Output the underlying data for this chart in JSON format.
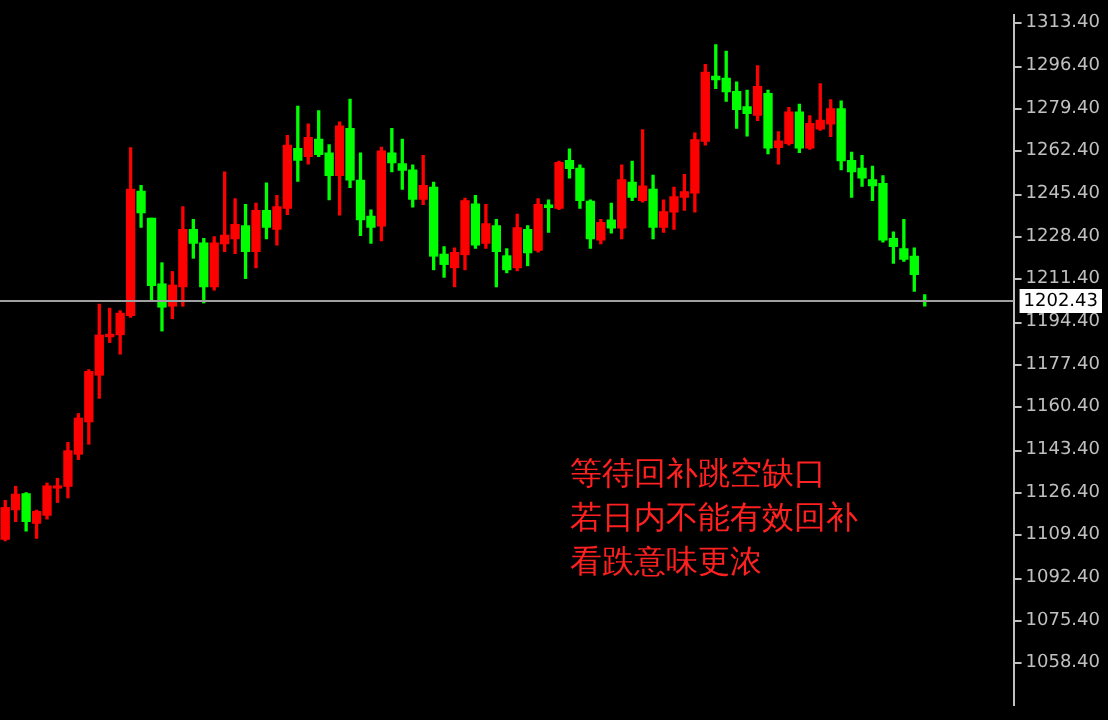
{
  "chart_data": {
    "type": "candlestick",
    "categories": [
      null,
      null,
      null,
      null,
      null,
      null,
      null,
      null,
      null,
      null,
      null,
      null,
      null,
      null,
      null,
      null,
      null,
      null,
      null,
      null,
      null,
      null,
      null,
      null,
      null,
      null,
      null,
      null,
      null,
      null,
      null,
      null,
      null,
      null,
      null,
      null,
      null,
      null,
      null,
      null,
      null,
      null,
      null,
      null,
      null,
      null,
      null,
      null,
      null,
      null,
      null,
      null,
      null,
      null,
      null,
      null,
      null,
      null,
      null,
      null,
      null,
      null,
      null,
      null,
      null,
      null,
      null,
      null,
      null,
      null,
      null,
      null,
      null,
      null,
      null,
      null,
      null,
      null,
      null,
      null,
      null,
      null,
      null,
      null,
      null,
      null,
      null,
      null,
      null,
      null,
      null,
      null,
      null,
      null,
      null,
      null,
      null
    ],
    "ohlc": [
      [
        1107.6,
        1122.9,
        1107,
        1120.1
      ],
      [
        1119.3,
        1128.5,
        1114.7,
        1125.4
      ],
      [
        1125.6,
        1126,
        1110.9,
        1114.7
      ],
      [
        1114,
        1119,
        1108,
        1118.5
      ],
      [
        1117.2,
        1129.8,
        1115.7,
        1128.7
      ],
      [
        1128,
        1131.7,
        1122.3,
        1128.7
      ],
      [
        1128.7,
        1146,
        1124.1,
        1142.7
      ],
      [
        1141.5,
        1157.5,
        1139.4,
        1155.7
      ],
      [
        1154.4,
        1175,
        1145.5,
        1174.3
      ],
      [
        1173,
        1201.1,
        1163.8,
        1188.8
      ],
      [
        1188.3,
        1199.5,
        1186,
        1189.1
      ],
      [
        1189.1,
        1198.5,
        1181.4,
        1197.5
      ],
      [
        1196.7,
        1263.5,
        1196,
        1246.9
      ],
      [
        1246.1,
        1248.4,
        1231.9,
        1237.7
      ],
      [
        1235.4,
        1235.4,
        1202.4,
        1208.7
      ],
      [
        1209.2,
        1217.6,
        1190.6,
        1200.1
      ],
      [
        1200.5,
        1214.1,
        1195.5,
        1208.7
      ],
      [
        1208.2,
        1240,
        1200.5,
        1230.9
      ],
      [
        1230.9,
        1234.9,
        1219.6,
        1225.5
      ],
      [
        1225.5,
        1227.3,
        1201.8,
        1208.2
      ],
      [
        1208.2,
        1228,
        1206.9,
        1225.5
      ],
      [
        1225.3,
        1253.8,
        1222.2,
        1228.6
      ],
      [
        1227.3,
        1243.1,
        1221.5,
        1232.9
      ],
      [
        1232.4,
        1240.8,
        1211.5,
        1222.2
      ],
      [
        1222.2,
        1241.3,
        1215.8,
        1238.5
      ],
      [
        1238.5,
        1249.4,
        1227.3,
        1231.9
      ],
      [
        1231.1,
        1244.4,
        1224.8,
        1240
      ],
      [
        1239.5,
        1268.3,
        1237,
        1264.5
      ],
      [
        1263.2,
        1280,
        1250.2,
        1258.6
      ],
      [
        1260.1,
        1272.9,
        1257.1,
        1267.5
      ],
      [
        1266.8,
        1278.2,
        1260.1,
        1260.9
      ],
      [
        1261.4,
        1264.7,
        1242.9,
        1252.5
      ],
      [
        1252.5,
        1273.7,
        1236.8,
        1272.1
      ],
      [
        1271.1,
        1282.8,
        1247.7,
        1250.7
      ],
      [
        1250.5,
        1261.4,
        1228.6,
        1234.9
      ],
      [
        1236.2,
        1238.7,
        1225.5,
        1231.9
      ],
      [
        1232.4,
        1263.7,
        1226.5,
        1262.2
      ],
      [
        1261.4,
        1271.1,
        1254,
        1257.6
      ],
      [
        1257.1,
        1266.8,
        1247.1,
        1254.6
      ],
      [
        1254.6,
        1256.6,
        1240,
        1243.1
      ],
      [
        1243.1,
        1260.4,
        1241,
        1248.4
      ],
      [
        1247.7,
        1249.7,
        1215,
        1220.4
      ],
      [
        1221,
        1224,
        1212,
        1217.1
      ],
      [
        1215.8,
        1223.5,
        1208.2,
        1221.7
      ],
      [
        1221,
        1243.3,
        1215,
        1242.3
      ],
      [
        1241,
        1244.4,
        1223.5,
        1224.8
      ],
      [
        1225.5,
        1240.8,
        1223.5,
        1233.2
      ],
      [
        1232.4,
        1234.9,
        1208.2,
        1222.2
      ],
      [
        1220.4,
        1223.2,
        1213.8,
        1215
      ],
      [
        1215.8,
        1237,
        1214.6,
        1231.6
      ],
      [
        1230.9,
        1232.4,
        1216.6,
        1221.7
      ],
      [
        1222.7,
        1243.1,
        1222,
        1240.8
      ],
      [
        1240.6,
        1242.6,
        1229.9,
        1239.8
      ],
      [
        1239.5,
        1258.1,
        1239,
        1257.6
      ],
      [
        1258.4,
        1263,
        1251.5,
        1255.3
      ],
      [
        1255.3,
        1256.6,
        1239.5,
        1242.6
      ],
      [
        1242.1,
        1242.6,
        1223.5,
        1227.3
      ],
      [
        1226.8,
        1234.9,
        1225.3,
        1233.7
      ],
      [
        1234.7,
        1241.3,
        1229.6,
        1231.6
      ],
      [
        1231.6,
        1256.6,
        1227.3,
        1250.7
      ],
      [
        1249.7,
        1258.1,
        1242.6,
        1243.9
      ],
      [
        1242.6,
        1270.6,
        1242,
        1248.2
      ],
      [
        1246.9,
        1252.5,
        1227.3,
        1231.9
      ],
      [
        1231.9,
        1242.6,
        1229.9,
        1238
      ],
      [
        1238,
        1247.7,
        1231.1,
        1243.9
      ],
      [
        1243.9,
        1252.8,
        1238.7,
        1245.9
      ],
      [
        1245.6,
        1269.3,
        1238,
        1266.6
      ],
      [
        1266.2,
        1296.6,
        1264.7,
        1293.5
      ],
      [
        1292,
        1304.5,
        1287.2,
        1290.7
      ],
      [
        1291.2,
        1301.9,
        1282.1,
        1285.9
      ],
      [
        1285.9,
        1289.7,
        1271.4,
        1278.8
      ],
      [
        1279.8,
        1286.4,
        1268.3,
        1277.2
      ],
      [
        1276.5,
        1296.1,
        1274.4,
        1287.9
      ],
      [
        1285.1,
        1286.4,
        1261.2,
        1263.5
      ],
      [
        1263.7,
        1269.8,
        1257.1,
        1266.2
      ],
      [
        1265.3,
        1279.5,
        1264.7,
        1277.7
      ],
      [
        1277.7,
        1280.8,
        1261.7,
        1263.5
      ],
      [
        1263.5,
        1276.2,
        1263,
        1273.1
      ],
      [
        1271.1,
        1289,
        1270.6,
        1274.4
      ],
      [
        1273.1,
        1282.6,
        1268.1,
        1279
      ],
      [
        1279,
        1282.1,
        1254.8,
        1258.4
      ],
      [
        1258.4,
        1261.7,
        1243.9,
        1254
      ],
      [
        1255.3,
        1260.4,
        1248.2,
        1251.5
      ],
      [
        1250.7,
        1256.1,
        1242.6,
        1248.4
      ],
      [
        1249.2,
        1252.3,
        1226,
        1226.8
      ],
      [
        1227.3,
        1229.9,
        1217.6,
        1224.2
      ],
      [
        1223.2,
        1234.9,
        1218.4,
        1219.2
      ],
      [
        1220.2,
        1223.5,
        1206.4,
        1213.1
      ],
      [
        1202.6,
        1204.9,
        1200.5,
        1202.4
      ],
      null,
      null,
      null,
      null,
      null,
      null,
      null,
      null
    ],
    "colors": [
      "#ff0000",
      "#ff0000",
      "#00ff00",
      "#ff0000",
      "#ff0000",
      "#ff0000",
      "#ff0000",
      "#ff0000",
      "#ff0000",
      "#ff0000",
      "#ff0000",
      "#ff0000",
      "#ff0000",
      "#00ff00",
      "#00ff00",
      "#00ff00",
      "#ff0000",
      "#ff0000",
      "#00ff00",
      "#00ff00",
      "#ff0000",
      "#ff0000",
      "#ff0000",
      "#00ff00",
      "#ff0000",
      "#00ff00",
      "#ff0000",
      "#ff0000",
      "#00ff00",
      "#ff0000",
      "#00ff00",
      "#00ff00",
      "#ff0000",
      "#00ff00",
      "#00ff00",
      "#00ff00",
      "#ff0000",
      "#00ff00",
      "#00ff00",
      "#00ff00",
      "#ff0000",
      "#00ff00",
      "#00ff00",
      "#ff0000",
      "#ff0000",
      "#00ff00",
      "#ff0000",
      "#00ff00",
      "#00ff00",
      "#ff0000",
      "#00ff00",
      "#ff0000",
      "#00ff00",
      "#ff0000",
      "#00ff00",
      "#00ff00",
      "#00ff00",
      "#ff0000",
      "#00ff00",
      "#ff0000",
      "#00ff00",
      "#ff0000",
      "#00ff00",
      "#ff0000",
      "#ff0000",
      "#ff0000",
      "#ff0000",
      "#ff0000",
      "#00ff00",
      "#00ff00",
      "#00ff00",
      "#00ff00",
      "#ff0000",
      "#00ff00",
      "#ff0000",
      "#ff0000",
      "#00ff00",
      "#ff0000",
      "#ff0000",
      "#ff0000",
      "#00ff00",
      "#00ff00",
      "#00ff00",
      "#00ff00",
      "#00ff00",
      "#00ff00",
      "#00ff00",
      "#00ff00",
      "#00ff00",
      null,
      null,
      null,
      null,
      null,
      null,
      null,
      null
    ],
    "ylim": [
      1041.4,
      1316.5
    ],
    "yticks": [
      {
        "value": 1058.4,
        "label": "1058.40"
      },
      {
        "value": 1075.4,
        "label": "1075.40"
      },
      {
        "value": 1092.4,
        "label": "1092.40"
      },
      {
        "value": 1109.4,
        "label": "1109.40"
      },
      {
        "value": 1126.4,
        "label": "1126.40"
      },
      {
        "value": 1143.4,
        "label": "1143.40"
      },
      {
        "value": 1160.4,
        "label": "1160.40"
      },
      {
        "value": 1177.4,
        "label": "1177.40"
      },
      {
        "value": 1194.4,
        "label": "1194.40"
      },
      {
        "value": 1211.4,
        "label": "1211.40"
      },
      {
        "value": 1228.4,
        "label": "1228.40"
      },
      {
        "value": 1245.4,
        "label": "1245.40"
      },
      {
        "value": 1262.4,
        "label": "1262.40"
      },
      {
        "value": 1279.4,
        "label": "1279.40"
      },
      {
        "value": 1296.4,
        "label": "1296.40"
      },
      {
        "value": 1313.4,
        "label": "1313.40"
      }
    ],
    "ref_lines": [
      {
        "axis": "y",
        "value": 1202.43,
        "label": "1202.43",
        "color": "#a0a0a0"
      }
    ],
    "annotations": [
      "等待回补跳空缺口",
      "若日内不能有效回补",
      "看跌意味更浓"
    ],
    "grid": false,
    "legend": false
  }
}
